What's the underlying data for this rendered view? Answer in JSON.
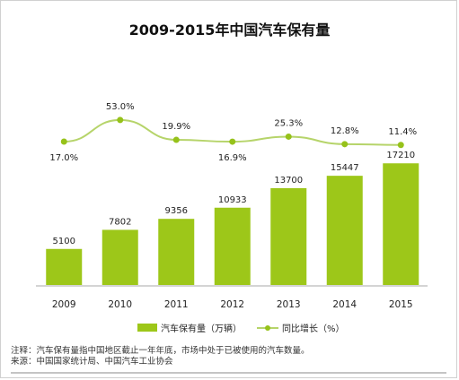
{
  "title": "2009-2015年中国汽车保有量",
  "chart_data": {
    "type": "bar",
    "title": "2009-2015年中国汽车保有量",
    "categories": [
      "2009",
      "2010",
      "2011",
      "2012",
      "2013",
      "2014",
      "2015"
    ],
    "series": [
      {
        "name": "汽车保有量（万辆）",
        "type": "bar",
        "values": [
          5100,
          7802,
          9356,
          10933,
          13700,
          15447,
          17210
        ],
        "labels": [
          "5100",
          "7802",
          "9356",
          "10933",
          "13700",
          "15447",
          "17210"
        ]
      },
      {
        "name": "同比增长（%）",
        "type": "line",
        "values": [
          17.0,
          53.0,
          19.9,
          16.9,
          25.3,
          12.8,
          11.4
        ],
        "labels": [
          "17.0%",
          "53.0%",
          "19.9%",
          "16.9%",
          "25.3%",
          "12.8%",
          "11.4%"
        ]
      }
    ],
    "legend_position": "bottom",
    "grid": false,
    "colors": {
      "bar": "#9dc719",
      "line": "#b6d46a",
      "point": "#96c21a"
    }
  },
  "notes": {
    "note": "注释：汽车保有量指中国地区截止一年年底，市场中处于已被使用的汽车数量。",
    "source": "来源：中国国家统计局、中国汽车工业协会"
  }
}
